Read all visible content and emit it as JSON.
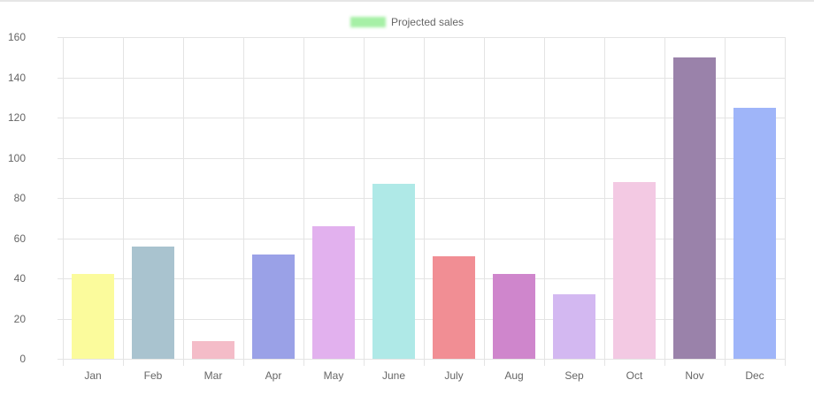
{
  "chart_data": {
    "type": "bar",
    "title": "",
    "legend": [
      {
        "label": "Projected sales",
        "color": "#a6f0a6"
      }
    ],
    "legend_position": "top",
    "categories": [
      "Jan",
      "Feb",
      "Mar",
      "Apr",
      "May",
      "June",
      "July",
      "Aug",
      "Sep",
      "Oct",
      "Nov",
      "Dec"
    ],
    "series": [
      {
        "name": "Projected sales",
        "values": [
          42,
          56,
          9,
          52,
          66,
          87,
          51,
          42,
          32,
          88,
          150,
          125
        ]
      }
    ],
    "bar_colors": [
      "#fbfb9c",
      "#a9c3cf",
      "#f4bcc8",
      "#9aa1e7",
      "#e2b1ee",
      "#afe9e7",
      "#f18e94",
      "#cf86cc",
      "#d3b8f1",
      "#f3c9e3",
      "#9a82aa",
      "#9fb5f9"
    ],
    "xlabel": "",
    "ylabel": "",
    "ylim": [
      0,
      160
    ],
    "yticks": [
      0,
      20,
      40,
      60,
      80,
      100,
      120,
      140,
      160
    ],
    "grid": true
  }
}
